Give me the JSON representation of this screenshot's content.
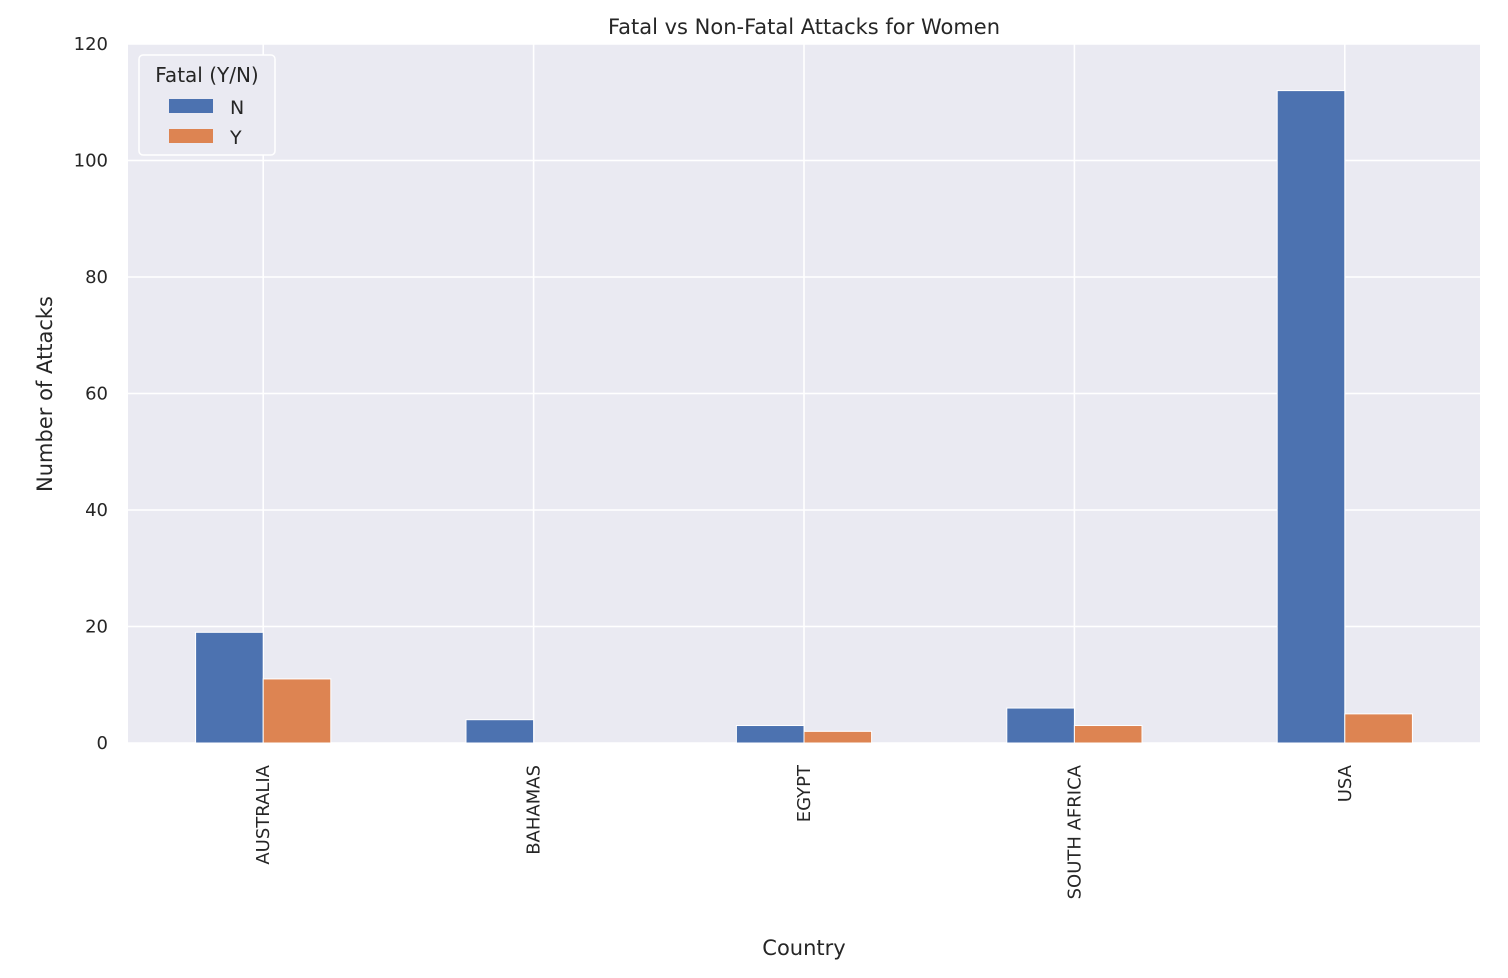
{
  "chart_data": {
    "type": "bar",
    "title": "Fatal vs Non-Fatal Attacks for Women",
    "xlabel": "Country",
    "ylabel": "Number of Attacks",
    "categories": [
      "AUSTRALIA",
      "BAHAMAS",
      "EGYPT",
      "SOUTH AFRICA",
      "USA"
    ],
    "series": [
      {
        "name": "N",
        "values": [
          19,
          4,
          3,
          6,
          112
        ],
        "color": "#4c72b0"
      },
      {
        "name": "Y",
        "values": [
          11,
          0,
          2,
          3,
          5
        ],
        "color": "#dd8452"
      }
    ],
    "ylim": [
      0,
      120
    ],
    "yticks": [
      0,
      20,
      40,
      60,
      80,
      100,
      120
    ],
    "grid": true,
    "legend": {
      "title": "Fatal (Y/N)",
      "placement": "upper-left"
    },
    "background": "#eaeaf2",
    "x_tick_rotation": 90
  }
}
